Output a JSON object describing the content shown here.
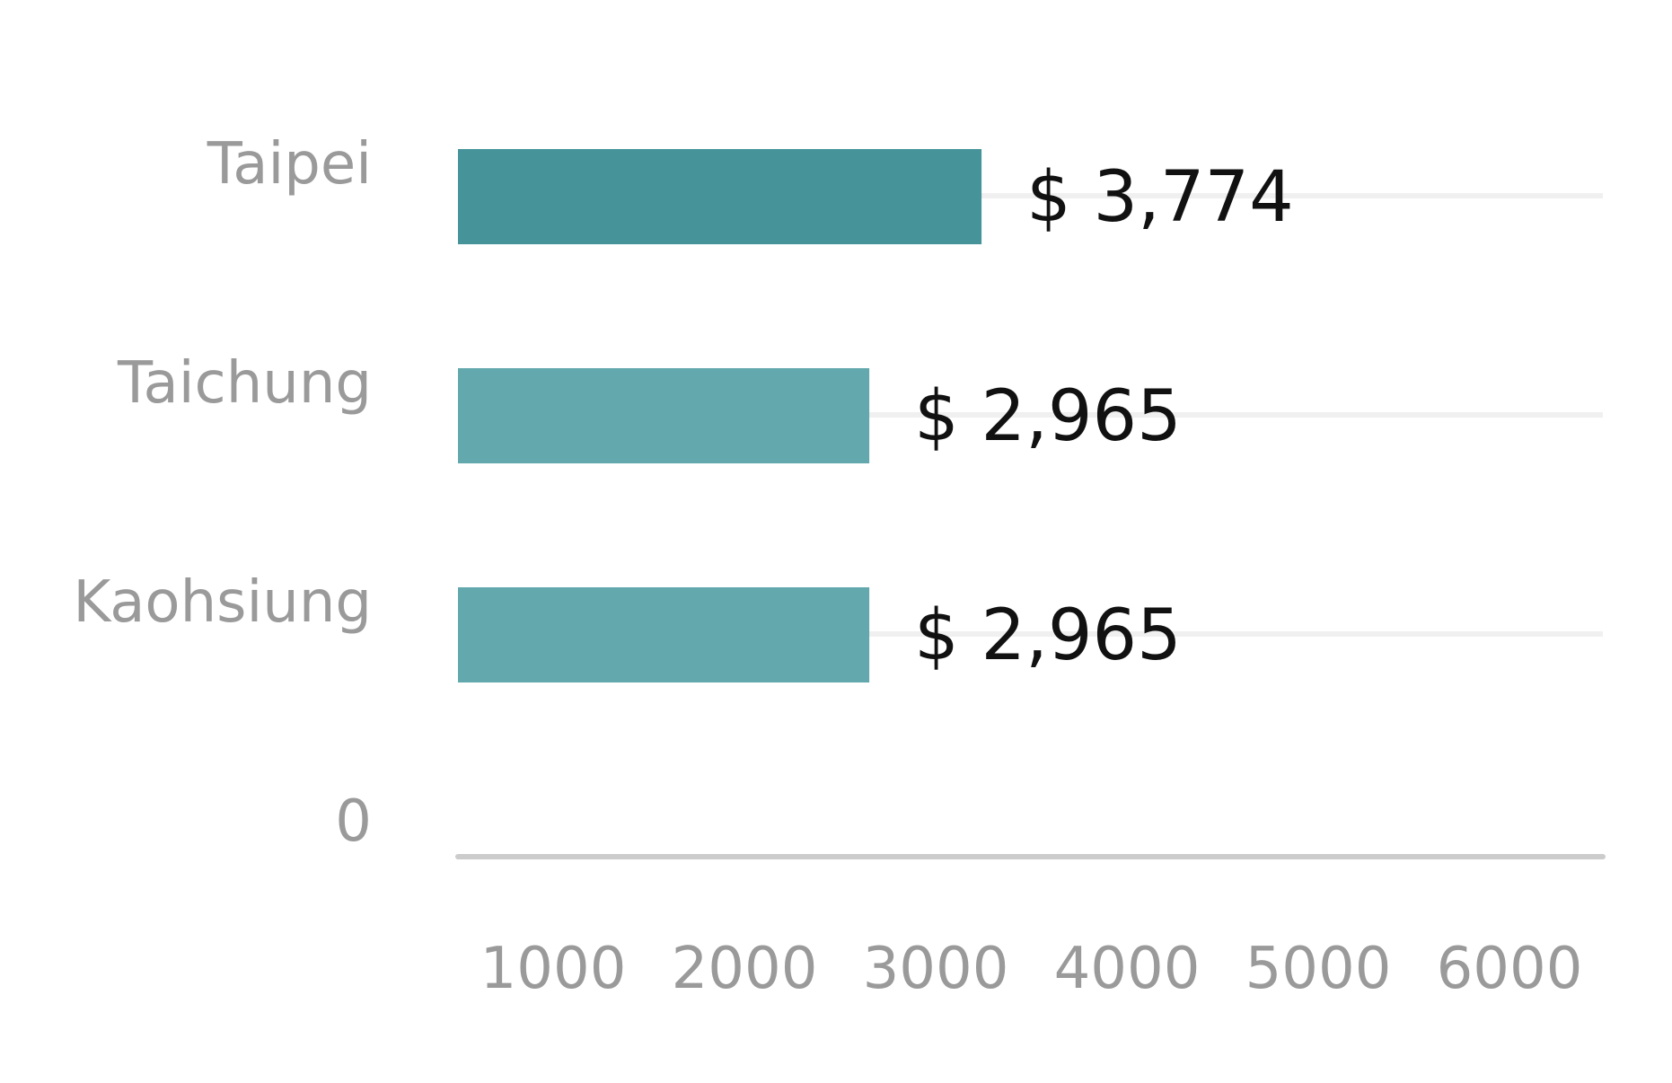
{
  "chart_data": {
    "type": "bar",
    "orientation": "horizontal",
    "categories": [
      "Taipei",
      "Taichung",
      "Kaohsiung",
      "0"
    ],
    "values": [
      3774,
      2965,
      2965,
      null
    ],
    "value_labels": [
      "$ 3,774",
      "$ 2,965",
      "$ 2,965",
      ""
    ],
    "x_ticks": [
      "1000",
      "2000",
      "3000",
      "4000",
      "5000",
      "6000"
    ],
    "xlim": [
      0,
      6000
    ],
    "title": "",
    "xlabel": "",
    "ylabel": "",
    "grid": true,
    "legend": "none",
    "colors": {
      "highlight_bar": "#46939a",
      "bar": "#62a8ad",
      "gridline": "#f0f0f0",
      "axis_line": "#cccccc",
      "category_text": "#9a9a9a",
      "tick_text": "#9a9a9a",
      "value_text": "#111111"
    }
  }
}
